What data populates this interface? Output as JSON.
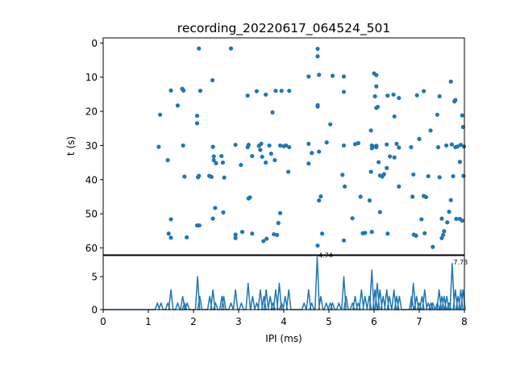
{
  "chart_data": [
    {
      "type": "scatter",
      "title": "recording_20220617_064524_501",
      "ylabel": "t (s)",
      "xlim": [
        0,
        8
      ],
      "ylim": [
        62,
        -1.5
      ],
      "y_inverted": true,
      "yticks": [
        "0",
        "10",
        "20",
        "30",
        "40",
        "50",
        "60"
      ],
      "marker_color": "#1f77b4",
      "points": [
        [
          1.26,
          21.0
        ],
        [
          1.23,
          30.4
        ],
        [
          1.43,
          34.3
        ],
        [
          1.5,
          13.9
        ],
        [
          1.5,
          51.6
        ],
        [
          1.45,
          55.8
        ],
        [
          1.5,
          57.0
        ],
        [
          1.65,
          18.3
        ],
        [
          1.75,
          13.4
        ],
        [
          1.78,
          13.9
        ],
        [
          1.77,
          30.0
        ],
        [
          1.8,
          39.1
        ],
        [
          1.85,
          56.9
        ],
        [
          2.12,
          1.6
        ],
        [
          2.08,
          21.3
        ],
        [
          2.08,
          23.5
        ],
        [
          2.15,
          14.0
        ],
        [
          2.12,
          38.9
        ],
        [
          2.1,
          39.3
        ],
        [
          2.08,
          53.4
        ],
        [
          2.13,
          53.4
        ],
        [
          2.35,
          38.9
        ],
        [
          2.4,
          39.2
        ],
        [
          2.42,
          10.9
        ],
        [
          2.43,
          30.4
        ],
        [
          2.45,
          34.3
        ],
        [
          2.5,
          35.2
        ],
        [
          2.45,
          33.2
        ],
        [
          2.48,
          48.3
        ],
        [
          2.43,
          51.4
        ],
        [
          2.62,
          33.1
        ],
        [
          2.65,
          35.0
        ],
        [
          2.68,
          39.4
        ],
        [
          2.66,
          49.6
        ],
        [
          2.83,
          1.6
        ],
        [
          2.93,
          29.8
        ],
        [
          2.93,
          56.1
        ],
        [
          2.93,
          57.1
        ],
        [
          3.05,
          35.7
        ],
        [
          3.08,
          55.3
        ],
        [
          3.2,
          15.4
        ],
        [
          3.2,
          30.5
        ],
        [
          3.22,
          29.8
        ],
        [
          3.22,
          45.5
        ],
        [
          3.25,
          45.2
        ],
        [
          3.3,
          33.1
        ],
        [
          3.3,
          55.8
        ],
        [
          3.4,
          14.1
        ],
        [
          3.45,
          30.1
        ],
        [
          3.48,
          31.3
        ],
        [
          3.5,
          29.5
        ],
        [
          3.52,
          33.3
        ],
        [
          3.6,
          15.1
        ],
        [
          3.55,
          58.0
        ],
        [
          3.62,
          57.3
        ],
        [
          3.6,
          35.0
        ],
        [
          3.68,
          30.0
        ],
        [
          3.75,
          20.3
        ],
        [
          3.72,
          32.4
        ],
        [
          3.78,
          56.0
        ],
        [
          3.82,
          14.0
        ],
        [
          3.8,
          34.3
        ],
        [
          3.85,
          56.2
        ],
        [
          3.92,
          30.0
        ],
        [
          3.95,
          14.0
        ],
        [
          3.92,
          49.8
        ],
        [
          3.88,
          52.7
        ],
        [
          4.0,
          30.2
        ],
        [
          4.1,
          37.7
        ],
        [
          4.05,
          30.0
        ],
        [
          4.12,
          30.5
        ],
        [
          4.12,
          14.0
        ],
        [
          4.55,
          9.8
        ],
        [
          4.55,
          29.5
        ],
        [
          4.55,
          35.3
        ],
        [
          4.62,
          32.2
        ],
        [
          4.75,
          1.7
        ],
        [
          4.75,
          3.9
        ],
        [
          4.75,
          18.2
        ],
        [
          4.75,
          18.6
        ],
        [
          4.78,
          9.3
        ],
        [
          4.78,
          31.8
        ],
        [
          4.78,
          46.1
        ],
        [
          4.82,
          44.9
        ],
        [
          4.75,
          59.3
        ],
        [
          4.85,
          55.8
        ],
        [
          4.95,
          29.1
        ],
        [
          5.03,
          23.8
        ],
        [
          5.08,
          9.6
        ],
        [
          5.33,
          14.3
        ],
        [
          5.33,
          9.8
        ],
        [
          5.33,
          30.0
        ],
        [
          5.3,
          38.6
        ],
        [
          5.35,
          42.0
        ],
        [
          5.33,
          57.8
        ],
        [
          5.52,
          51.3
        ],
        [
          5.58,
          29.6
        ],
        [
          5.65,
          29.3
        ],
        [
          5.7,
          45.0
        ],
        [
          5.75,
          55.7
        ],
        [
          5.8,
          55.6
        ],
        [
          5.9,
          46.1
        ],
        [
          5.93,
          25.6
        ],
        [
          5.95,
          30.0
        ],
        [
          5.95,
          30.8
        ],
        [
          5.98,
          30.3
        ],
        [
          5.93,
          37.7
        ],
        [
          5.95,
          55.3
        ],
        [
          6.0,
          8.9
        ],
        [
          6.02,
          15.6
        ],
        [
          6.05,
          9.4
        ],
        [
          6.05,
          19.0
        ],
        [
          6.05,
          30.1
        ],
        [
          6.05,
          30.5
        ],
        [
          6.1,
          34.9
        ],
        [
          6.08,
          18.7
        ],
        [
          6.05,
          12.7
        ],
        [
          6.13,
          38.8
        ],
        [
          6.13,
          49.5
        ],
        [
          6.18,
          39.1
        ],
        [
          6.22,
          38.4
        ],
        [
          6.28,
          29.7
        ],
        [
          6.3,
          15.4
        ],
        [
          6.28,
          36.6
        ],
        [
          6.3,
          55.8
        ],
        [
          6.35,
          33.2
        ],
        [
          6.43,
          15.1
        ],
        [
          6.45,
          33.5
        ],
        [
          6.45,
          21.5
        ],
        [
          6.5,
          29.5
        ],
        [
          6.55,
          30.6
        ],
        [
          6.55,
          16.1
        ],
        [
          6.55,
          42.0
        ],
        [
          6.82,
          30.5
        ],
        [
          6.85,
          45.0
        ],
        [
          6.87,
          38.5
        ],
        [
          6.88,
          56.1
        ],
        [
          6.93,
          56.4
        ],
        [
          6.95,
          15.3
        ],
        [
          7.0,
          28.1
        ],
        [
          7.05,
          51.6
        ],
        [
          7.1,
          14.1
        ],
        [
          7.12,
          55.7
        ],
        [
          7.1,
          44.8
        ],
        [
          7.15,
          45.1
        ],
        [
          7.2,
          39.0
        ],
        [
          7.25,
          25.6
        ],
        [
          7.3,
          59.7
        ],
        [
          7.4,
          21.0
        ],
        [
          7.42,
          30.5
        ],
        [
          7.45,
          15.6
        ],
        [
          7.45,
          39.3
        ],
        [
          7.5,
          51.4
        ],
        [
          7.5,
          57.1
        ],
        [
          7.53,
          56.2
        ],
        [
          7.55,
          55.1
        ],
        [
          7.6,
          30.0
        ],
        [
          7.62,
          52.5
        ],
        [
          7.7,
          11.3
        ],
        [
          7.72,
          29.7
        ],
        [
          7.78,
          17.1
        ],
        [
          7.8,
          16.7
        ],
        [
          7.8,
          30.5
        ],
        [
          7.82,
          51.5
        ],
        [
          7.85,
          30.3
        ],
        [
          7.9,
          34.8
        ],
        [
          7.9,
          51.5
        ],
        [
          7.92,
          29.8
        ],
        [
          7.95,
          52.0
        ],
        [
          7.95,
          21.2
        ],
        [
          7.98,
          38.9
        ],
        [
          7.97,
          24.6
        ],
        [
          7.99,
          30.3
        ],
        [
          7.75,
          39.0
        ],
        [
          7.7,
          46.0
        ],
        [
          7.66,
          49.4
        ]
      ]
    },
    {
      "type": "line",
      "xlabel": "IPI (ms)",
      "xlim": [
        0,
        8
      ],
      "ylim": [
        0,
        8.2
      ],
      "xticks": [
        "0",
        "1",
        "2",
        "3",
        "4",
        "5",
        "6",
        "7",
        "8"
      ],
      "yticks": [
        "0",
        "5"
      ],
      "line_color": "#1f77b4",
      "peaks": [
        {
          "x": 1.2,
          "h": 1
        },
        {
          "x": 1.28,
          "h": 1
        },
        {
          "x": 1.43,
          "h": 1
        },
        {
          "x": 1.5,
          "h": 3
        },
        {
          "x": 1.65,
          "h": 1
        },
        {
          "x": 1.76,
          "h": 2
        },
        {
          "x": 1.8,
          "h": 1
        },
        {
          "x": 1.86,
          "h": 1
        },
        {
          "x": 2.09,
          "h": 5
        },
        {
          "x": 2.14,
          "h": 2
        },
        {
          "x": 2.36,
          "h": 2
        },
        {
          "x": 2.43,
          "h": 3
        },
        {
          "x": 2.49,
          "h": 1
        },
        {
          "x": 2.63,
          "h": 2
        },
        {
          "x": 2.67,
          "h": 2
        },
        {
          "x": 2.83,
          "h": 1
        },
        {
          "x": 2.93,
          "h": 3
        },
        {
          "x": 3.06,
          "h": 1
        },
        {
          "x": 3.21,
          "h": 4
        },
        {
          "x": 3.31,
          "h": 2
        },
        {
          "x": 3.4,
          "h": 1
        },
        {
          "x": 3.48,
          "h": 3
        },
        {
          "x": 3.56,
          "h": 2
        },
        {
          "x": 3.61,
          "h": 3
        },
        {
          "x": 3.7,
          "h": 2
        },
        {
          "x": 3.76,
          "h": 1
        },
        {
          "x": 3.82,
          "h": 3
        },
        {
          "x": 3.9,
          "h": 4
        },
        {
          "x": 3.95,
          "h": 1
        },
        {
          "x": 4.03,
          "h": 2
        },
        {
          "x": 4.11,
          "h": 3
        },
        {
          "x": 4.45,
          "h": 1
        },
        {
          "x": 4.55,
          "h": 3
        },
        {
          "x": 4.62,
          "h": 1
        },
        {
          "x": 4.74,
          "h": 8
        },
        {
          "x": 4.82,
          "h": 2
        },
        {
          "x": 4.94,
          "h": 1
        },
        {
          "x": 5.03,
          "h": 1
        },
        {
          "x": 5.08,
          "h": 1
        },
        {
          "x": 5.22,
          "h": 1
        },
        {
          "x": 5.33,
          "h": 5
        },
        {
          "x": 5.38,
          "h": 2
        },
        {
          "x": 5.52,
          "h": 1
        },
        {
          "x": 5.58,
          "h": 2
        },
        {
          "x": 5.65,
          "h": 1
        },
        {
          "x": 5.72,
          "h": 3
        },
        {
          "x": 5.8,
          "h": 2
        },
        {
          "x": 5.89,
          "h": 2
        },
        {
          "x": 5.95,
          "h": 6
        },
        {
          "x": 6.02,
          "h": 3
        },
        {
          "x": 6.07,
          "h": 4
        },
        {
          "x": 6.13,
          "h": 3
        },
        {
          "x": 6.2,
          "h": 2
        },
        {
          "x": 6.28,
          "h": 3
        },
        {
          "x": 6.34,
          "h": 2
        },
        {
          "x": 6.44,
          "h": 3
        },
        {
          "x": 6.5,
          "h": 2
        },
        {
          "x": 6.56,
          "h": 2
        },
        {
          "x": 6.83,
          "h": 2
        },
        {
          "x": 6.87,
          "h": 4
        },
        {
          "x": 6.94,
          "h": 2
        },
        {
          "x": 7.0,
          "h": 1
        },
        {
          "x": 7.06,
          "h": 2
        },
        {
          "x": 7.12,
          "h": 3
        },
        {
          "x": 7.2,
          "h": 1
        },
        {
          "x": 7.26,
          "h": 1
        },
        {
          "x": 7.3,
          "h": 1
        },
        {
          "x": 7.4,
          "h": 1
        },
        {
          "x": 7.44,
          "h": 3
        },
        {
          "x": 7.5,
          "h": 2
        },
        {
          "x": 7.55,
          "h": 2
        },
        {
          "x": 7.61,
          "h": 2
        },
        {
          "x": 7.66,
          "h": 1
        },
        {
          "x": 7.73,
          "h": 7
        },
        {
          "x": 7.8,
          "h": 3
        },
        {
          "x": 7.86,
          "h": 2
        },
        {
          "x": 7.92,
          "h": 3
        },
        {
          "x": 7.97,
          "h": 3
        }
      ],
      "annotations": [
        {
          "x": 4.74,
          "y": 8,
          "label": "4.74"
        },
        {
          "x": 7.73,
          "y": 7,
          "label": "7.73"
        }
      ]
    }
  ]
}
